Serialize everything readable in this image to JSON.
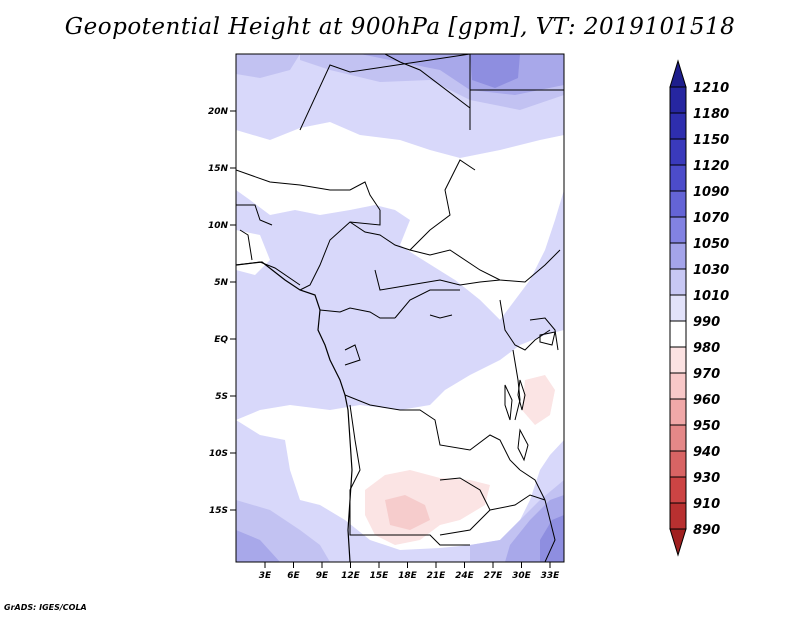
{
  "title": "Geopotential Height at 900hPa [gpm], VT: 2019101518",
  "credit": "GrADS: IGES/COLA",
  "map": {
    "lat_labels": [
      "20N",
      "15N",
      "10N",
      "5N",
      "EQ",
      "5S",
      "10S",
      "15S"
    ],
    "lon_labels": [
      "3E",
      "6E",
      "9E",
      "12E",
      "15E",
      "18E",
      "21E",
      "24E",
      "27E",
      "30E",
      "33E"
    ]
  },
  "colorbar": {
    "levels": [
      "1210",
      "1180",
      "1150",
      "1120",
      "1090",
      "1070",
      "1050",
      "1030",
      "1010",
      "990",
      "980",
      "970",
      "960",
      "950",
      "940",
      "930",
      "910",
      "890"
    ],
    "colors": [
      "#1e1e8c",
      "#2626a0",
      "#2e2eae",
      "#3a3abc",
      "#4c4cca",
      "#6464d6",
      "#8282e2",
      "#a4a4ea",
      "#c8c8f4",
      "#e2e2fa",
      "#ffffff",
      "#fce2e2",
      "#f8c8c8",
      "#f0a8a8",
      "#e48888",
      "#d86464",
      "#cc4444",
      "#b83030",
      "#a02020"
    ]
  }
}
